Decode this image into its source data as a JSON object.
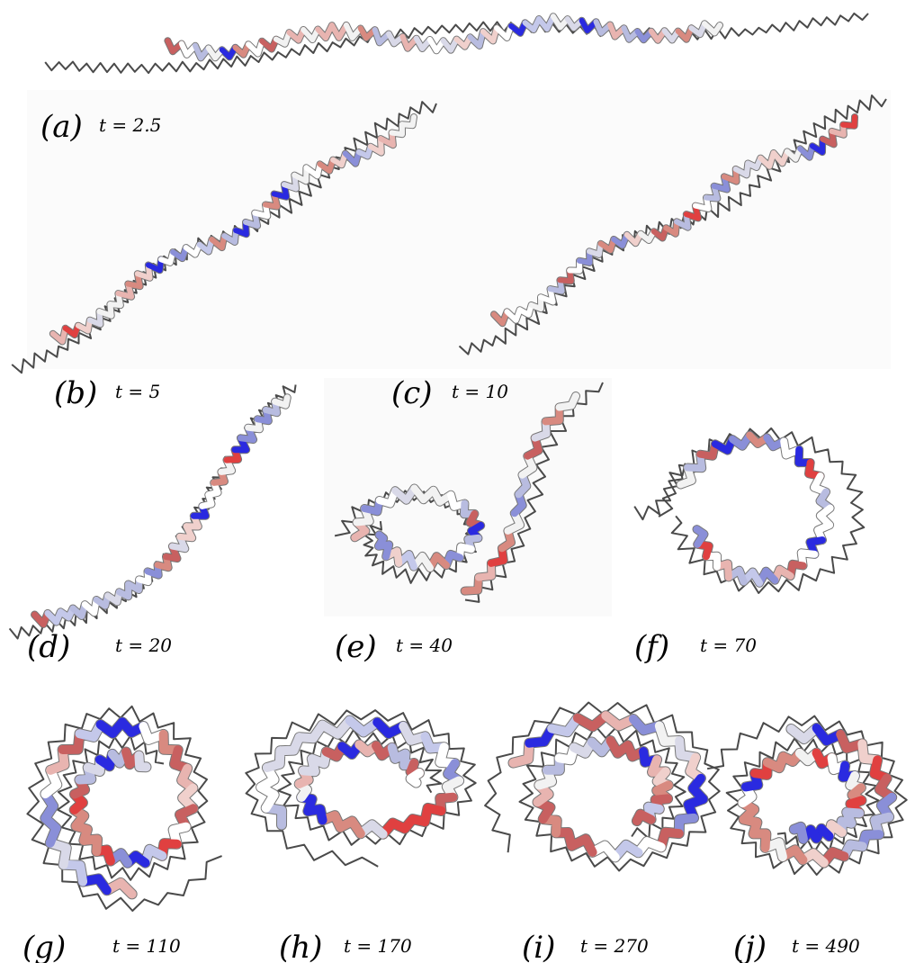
{
  "panels": [
    {
      "label": "(a)",
      "time": "t = 2.5"
    },
    {
      "label": "(b)",
      "time": "t = 5"
    },
    {
      "label": "(c)",
      "time": "t = 10"
    },
    {
      "label": "(d)",
      "time": "t = 20"
    },
    {
      "label": "(e)",
      "time": "t = 40"
    },
    {
      "label": "(f)",
      "time": "t = 70"
    },
    {
      "label": "(g)",
      "time": "t = 110"
    },
    {
      "label": "(h)",
      "time": "t = 170"
    },
    {
      "label": "(i)",
      "time": "t = 270"
    },
    {
      "label": "(j)",
      "time": "t = 490"
    }
  ]
}
